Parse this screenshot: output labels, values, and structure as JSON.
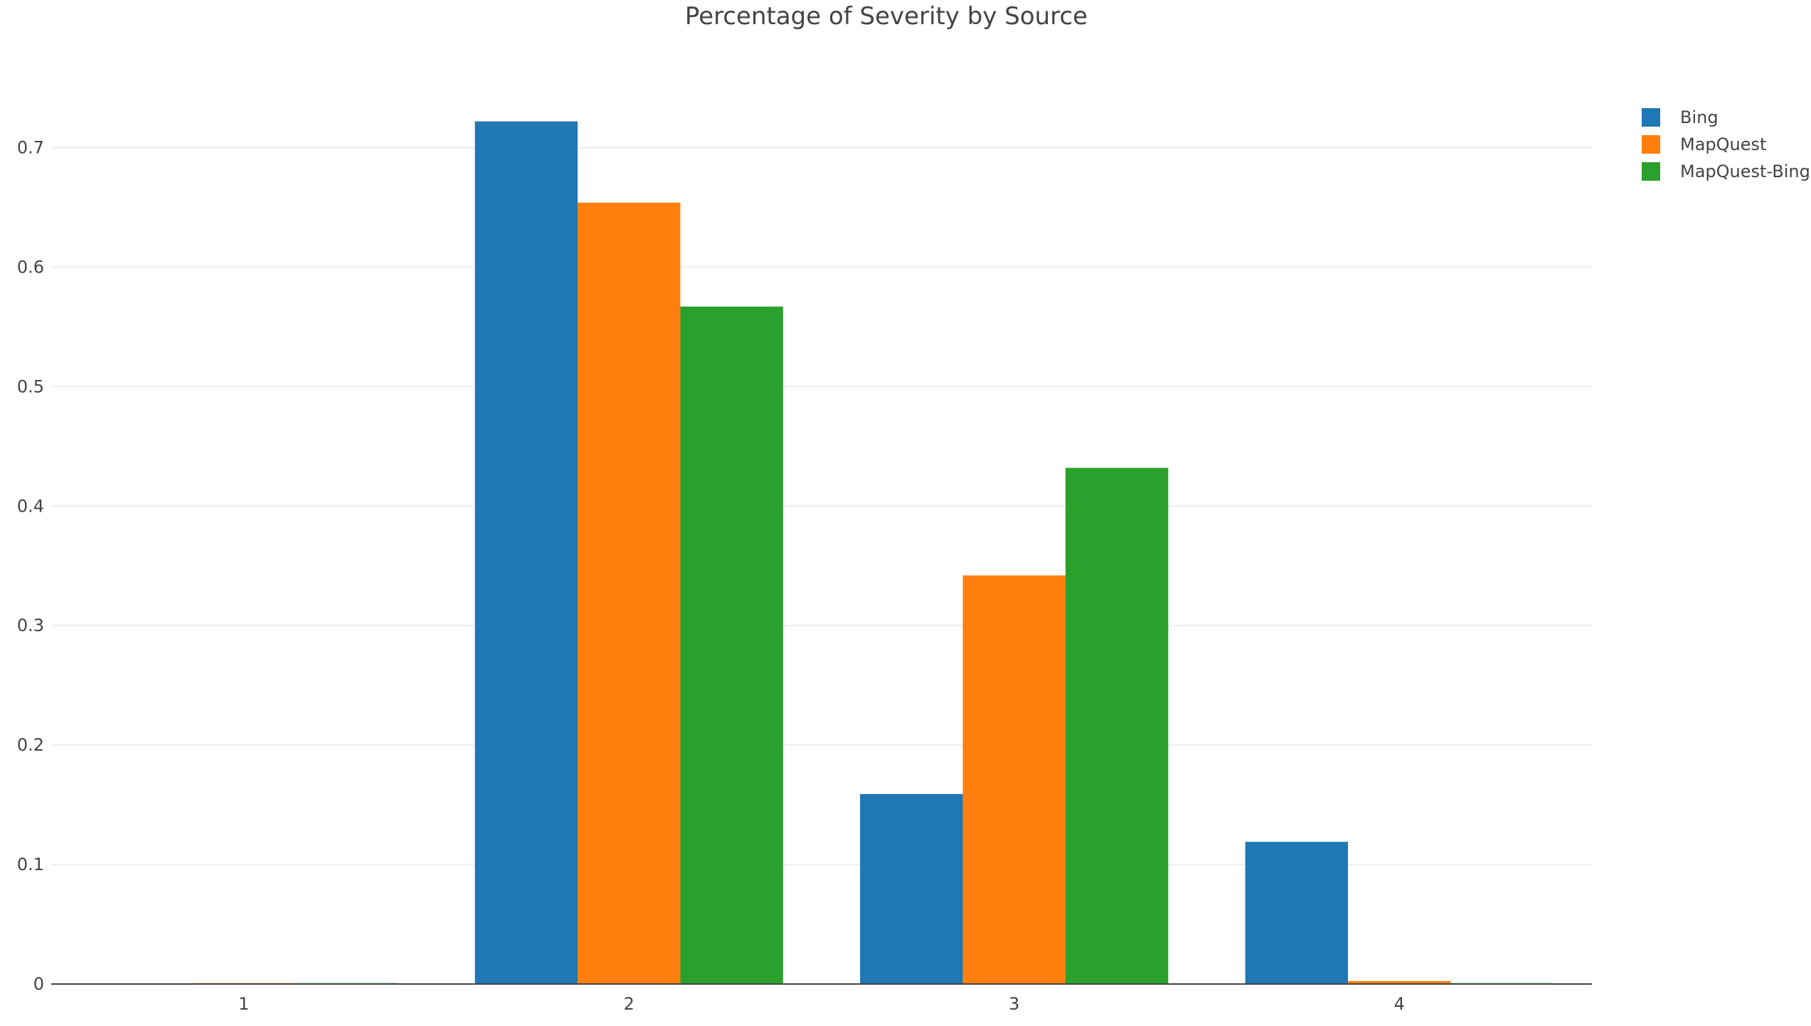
{
  "chart_data": {
    "type": "bar",
    "title": "Percentage of Severity by Source",
    "xlabel": "",
    "ylabel": "",
    "categories": [
      "1",
      "2",
      "3",
      "4"
    ],
    "ylim": [
      0,
      0.77
    ],
    "yticks": [
      0,
      0.1,
      0.2,
      0.3,
      0.4,
      0.5,
      0.6,
      0.7
    ],
    "ytick_labels": [
      "0",
      "0.1",
      "0.2",
      "0.3",
      "0.4",
      "0.5",
      "0.6",
      "0.7"
    ],
    "grid": "horizontal",
    "legend_position": "top-right",
    "series": [
      {
        "name": "Bing",
        "color": "#1f77b4",
        "values": [
          0.0,
          0.722,
          0.159,
          0.119
        ]
      },
      {
        "name": "MapQuest",
        "color": "#ff7f0e",
        "values": [
          0.0008,
          0.654,
          0.342,
          0.0025
        ]
      },
      {
        "name": "MapQuest-Bing",
        "color": "#2ca02c",
        "values": [
          0.0008,
          0.567,
          0.432,
          0.0008
        ]
      }
    ]
  }
}
